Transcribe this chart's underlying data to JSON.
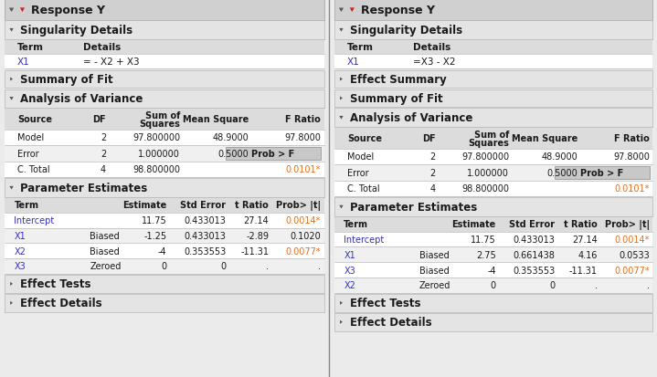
{
  "bg_color": "#ebebeb",
  "header_bg": "#d0d0d0",
  "subheader_bg": "#e4e4e4",
  "table_header_bg": "#dcdcdc",
  "row_white": "#ffffff",
  "row_gray": "#f0f0f0",
  "prob_box_bg": "#c8c8c8",
  "orange_color": "#e07020",
  "blue_text": "#3333bb",
  "black_text": "#1a1a1a",
  "border_color": "#aaaaaa",
  "model1": {
    "title": "Response Y",
    "singularity_title": "Singularity Details",
    "sing_term": "X1",
    "sing_detail": "= - X2 + X3",
    "has_effect_summary": false,
    "summary_title": "Summary of Fit",
    "anova_title": "Analysis of Variance",
    "anova_rows": [
      [
        "Model",
        "2",
        "97.800000",
        "48.9000",
        "97.8000",
        false
      ],
      [
        "Error",
        "2",
        "1.000000",
        "0.5000",
        "Prob > F",
        false
      ],
      [
        "C. Total",
        "4",
        "98.800000",
        "",
        "0.0101*",
        true
      ]
    ],
    "param_title": "Parameter Estimates",
    "param_rows": [
      [
        "Intercept",
        "",
        "11.75",
        "0.433013",
        "27.14",
        "0.0014*"
      ],
      [
        "X1",
        "Biased",
        "-1.25",
        "0.433013",
        "-2.89",
        "0.1020"
      ],
      [
        "X2",
        "Biased",
        "-4",
        "0.353553",
        "-11.31",
        "0.0077*"
      ],
      [
        "X3",
        "Zeroed",
        "0",
        "0",
        ".",
        "."
      ]
    ],
    "effect_tests_title": "Effect Tests",
    "effect_details_title": "Effect Details"
  },
  "model2": {
    "title": "Response Y",
    "singularity_title": "Singularity Details",
    "sing_term": "X1",
    "sing_detail": "=X3 - X2",
    "has_effect_summary": true,
    "effect_summary_title": "Effect Summary",
    "summary_title": "Summary of Fit",
    "anova_title": "Analysis of Variance",
    "anova_rows": [
      [
        "Model",
        "2",
        "97.800000",
        "48.9000",
        "97.8000",
        false
      ],
      [
        "Error",
        "2",
        "1.000000",
        "0.5000",
        "Prob > F",
        false
      ],
      [
        "C. Total",
        "4",
        "98.800000",
        "",
        "0.0101*",
        true
      ]
    ],
    "param_title": "Parameter Estimates",
    "param_rows": [
      [
        "Intercept",
        "",
        "11.75",
        "0.433013",
        "27.14",
        "0.0014*"
      ],
      [
        "X1",
        "Biased",
        "2.75",
        "0.661438",
        "4.16",
        "0.0533"
      ],
      [
        "X3",
        "Biased",
        "-4",
        "0.353553",
        "-11.31",
        "0.0077*"
      ],
      [
        "X2",
        "Zeroed",
        "0",
        "0",
        ".",
        "."
      ]
    ],
    "effect_tests_title": "Effect Tests",
    "effect_details_title": "Effect Details"
  }
}
